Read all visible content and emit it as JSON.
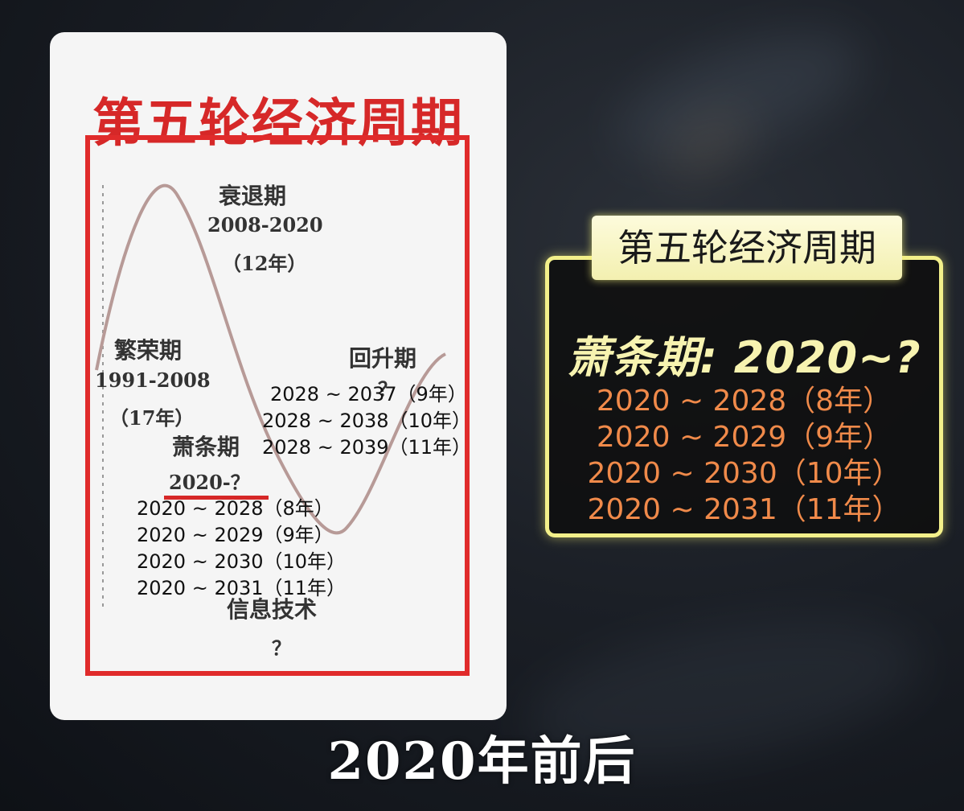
{
  "left_card": {
    "title": "第五轮经济周期",
    "phases": {
      "recession": {
        "name": "衰退期",
        "years": "2008-2020",
        "duration": "（12年）"
      },
      "prosperity": {
        "name": "繁荣期",
        "years": "1991-2008",
        "duration": "（17年）"
      },
      "depression": {
        "name": "萧条期",
        "years": "2020-？"
      },
      "recovery": {
        "name": "回升期",
        "years": "？"
      },
      "tech": {
        "name": "信息技术",
        "years": "？"
      }
    },
    "recovery_overlay": [
      "2028 ~ 2037（9年）",
      "2028 ~ 2038（10年）",
      "2028 ~ 2039（11年）"
    ],
    "depression_overlay": [
      "2020 ~ 2028（8年）",
      "2020 ~ 2029（9年）",
      "2020 ~ 2030（10年）",
      "2020 ~ 2031（11年）"
    ]
  },
  "right_panel": {
    "tab_title": "第五轮经济周期",
    "heading": "萧条期: 2020~?",
    "items": [
      "2020 ~ 2028（8年）",
      "2020 ~ 2029（9年）",
      "2020 ~ 2030（10年）",
      "2020 ~ 2031（11年）"
    ]
  },
  "caption": "2020年前后",
  "colors": {
    "title_red": "#d62828",
    "panel_border": "#f3f08a",
    "panel_text": "#f08a4a",
    "heading_text": "#f7f3b0"
  }
}
